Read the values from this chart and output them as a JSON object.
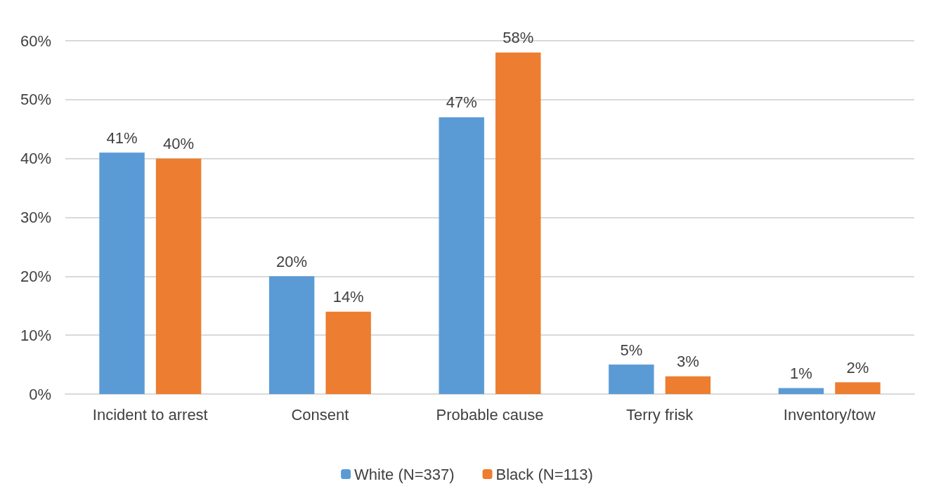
{
  "chart_data": {
    "type": "bar",
    "categories": [
      "Incident to arrest",
      "Consent",
      "Probable cause",
      "Terry frisk",
      "Inventory/tow"
    ],
    "series": [
      {
        "name": "White (N=337)",
        "color": "#5b9bd5",
        "values": [
          41,
          20,
          47,
          5,
          1
        ],
        "value_labels": [
          "41%",
          "20%",
          "47%",
          "5%",
          "1%"
        ]
      },
      {
        "name": "Black (N=113)",
        "color": "#ed7d31",
        "values": [
          40,
          14,
          58,
          3,
          2
        ],
        "value_labels": [
          "40%",
          "14%",
          "58%",
          "3%",
          "2%"
        ]
      }
    ],
    "ylim": [
      0,
      60
    ],
    "yticks": [
      {
        "value": 0,
        "label": "0%"
      },
      {
        "value": 10,
        "label": "10%"
      },
      {
        "value": 20,
        "label": "20%"
      },
      {
        "value": 30,
        "label": "30%"
      },
      {
        "value": 40,
        "label": "40%"
      },
      {
        "value": 50,
        "label": "50%"
      },
      {
        "value": 60,
        "label": "60%"
      }
    ],
    "grid": "y",
    "legend": "bottom"
  }
}
